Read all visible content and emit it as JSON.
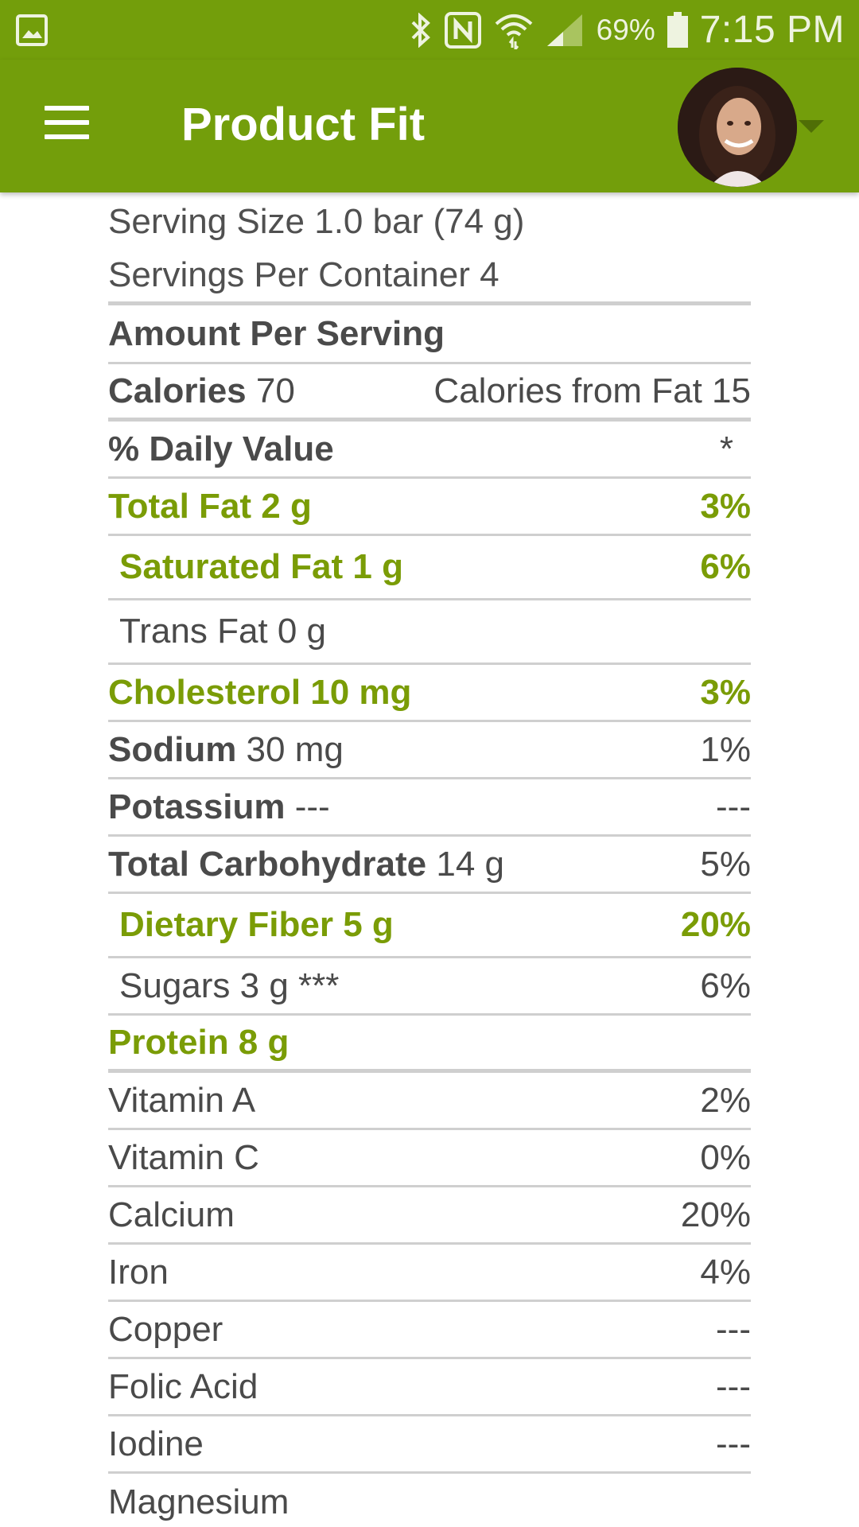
{
  "status_bar": {
    "battery_percent": "69%",
    "time": "7:15 PM",
    "icons": [
      "gallery-icon",
      "bluetooth-icon",
      "nfc-icon",
      "wifi-icon",
      "signal-icon",
      "battery-icon"
    ]
  },
  "app_bar": {
    "title": "Product Fit",
    "menu_icon": "hamburger-menu-icon",
    "account_icon": "avatar-dropdown-icon"
  },
  "colors": {
    "brand_green": "#739e0b",
    "highlight_green": "#7a9c06",
    "text_gray": "#4a4a4a",
    "divider": "#cfcfcf"
  },
  "nutrition": {
    "serving_size": "Serving Size 1.0 bar (74 g)",
    "servings_per_container": "Servings Per Container 4",
    "amount_per_serving": "Amount Per Serving",
    "calories_label": "Calories",
    "calories_value": " 70",
    "calories_from_fat": "Calories from Fat 15",
    "daily_value_label": "% Daily Value",
    "daily_value_mark": "*",
    "total_fat": {
      "label": "Total Fat 2 g",
      "dv": "3%"
    },
    "saturated_fat": {
      "label": "Saturated Fat 1 g",
      "dv": "6%"
    },
    "trans_fat": {
      "label": "Trans Fat 0 g",
      "dv": ""
    },
    "cholesterol": {
      "label": "Cholesterol 10 mg",
      "dv": "3%"
    },
    "sodium": {
      "label": "Sodium",
      "amount": " 30 mg",
      "dv": "1%"
    },
    "potassium": {
      "label": "Potassium",
      "amount": " ---",
      "dv": "---"
    },
    "total_carbohydrate": {
      "label": "Total Carbohydrate",
      "amount": " 14 g",
      "dv": "5%"
    },
    "dietary_fiber": {
      "label": "Dietary Fiber 5 g",
      "dv": "20%"
    },
    "sugars": {
      "label": "Sugars 3 g ***",
      "dv": "6%"
    },
    "protein": {
      "label": "Protein 8 g",
      "dv": ""
    },
    "vitamins": [
      {
        "name": "Vitamin A",
        "dv": "2%"
      },
      {
        "name": "Vitamin C",
        "dv": "0%"
      },
      {
        "name": "Calcium",
        "dv": "20%"
      },
      {
        "name": "Iron",
        "dv": "4%"
      },
      {
        "name": "Copper",
        "dv": "---"
      },
      {
        "name": "Folic Acid",
        "dv": "---"
      },
      {
        "name": "Iodine",
        "dv": "---"
      },
      {
        "name": "Magnesium",
        "dv": ""
      }
    ]
  }
}
